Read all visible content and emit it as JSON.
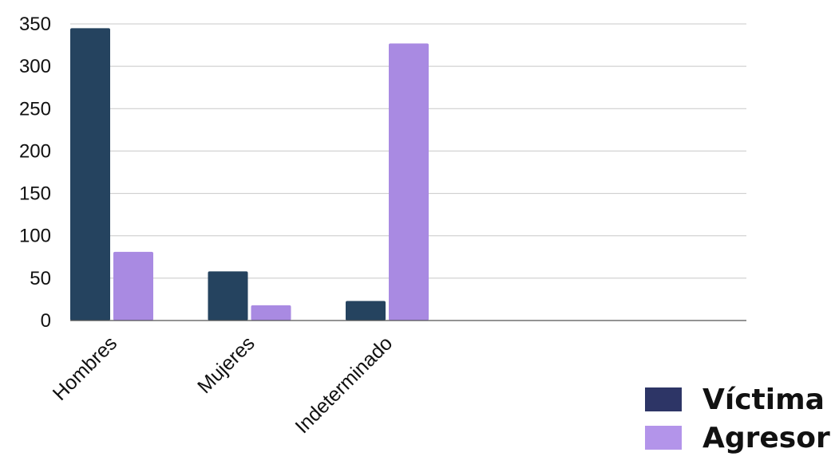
{
  "chart_data": {
    "type": "bar",
    "categories": [
      "Hombres",
      "Mujeres",
      "Indeterminado",
      ""
    ],
    "series": [
      {
        "name": "Víctima",
        "values": [
          345,
          58,
          23,
          0
        ],
        "color": "#25435f",
        "legend_color": "#2d3566"
      },
      {
        "name": "Agresor",
        "values": [
          81,
          18,
          327,
          0
        ],
        "color": "#a98ae2",
        "legend_color": "#b394ea"
      }
    ],
    "y_ticks": [
      "0",
      "50",
      "100",
      "150",
      "200",
      "250",
      "300",
      "350"
    ],
    "ylim": [
      0,
      350
    ],
    "grid": true,
    "legend_position": "bottom-right",
    "title": "",
    "xlabel": "",
    "ylabel": ""
  }
}
